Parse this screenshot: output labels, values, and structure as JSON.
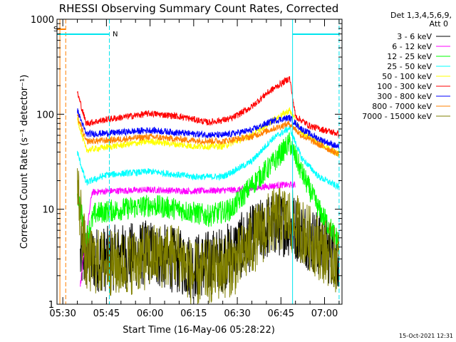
{
  "chart_data": {
    "type": "line",
    "title": "RHESSI Observing Summary Count Rates, Corrected",
    "xlabel": "Start Time (16-May-06 05:28:22)",
    "ylabel": "Corrected Count Rate (s⁻¹ detector⁻¹)",
    "yscale": "log",
    "ylim": [
      1,
      1000
    ],
    "xlim": [
      "05:28",
      "07:06"
    ],
    "x_ticks": [
      "05:30",
      "05:45",
      "06:00",
      "06:15",
      "06:30",
      "06:45",
      "07:00"
    ],
    "y_ticks": [
      "1",
      "10",
      "100",
      "1000"
    ],
    "timestamp": "15-Oct-2021 12:31",
    "legend": {
      "placement": "top-right",
      "header": [
        "Det 1,3,4,5,6,9,",
        "Att 0"
      ]
    },
    "annotations": {
      "saa_label": "S",
      "night_label": "N",
      "saa_color": "#ff8000",
      "night_color": "#00e5ee",
      "saa_line_times": [
        "05:29",
        "05:31"
      ],
      "night_line_times": [
        "05:28",
        "05:46",
        "06:49",
        "07:05"
      ],
      "saa_bar": [
        "05:28",
        "05:31"
      ],
      "night_bars": [
        [
          "05:28",
          "05:46"
        ],
        [
          "06:49",
          "07:05"
        ]
      ]
    },
    "series": [
      {
        "name": "3 - 6 keV",
        "color": "#000000",
        "start": "05:36",
        "x": [
          "05:36",
          "05:45",
          "06:00",
          "06:15",
          "06:25",
          "06:35",
          "06:42",
          "06:48",
          "06:55",
          "07:05"
        ],
        "y": [
          3,
          3,
          3.5,
          2.5,
          3,
          5,
          7,
          7,
          5,
          3
        ]
      },
      {
        "name": "6 - 12 keV",
        "color": "#ff00ff",
        "start": "05:36",
        "x": [
          "05:36",
          "05:40",
          "05:45",
          "06:00",
          "06:15",
          "06:30",
          "06:38",
          "06:45",
          "06:50"
        ],
        "y": [
          1.6,
          15,
          15.5,
          16,
          15.5,
          16,
          17,
          18,
          18
        ]
      },
      {
        "name": "12 - 25 keV",
        "color": "#00ff00",
        "start": "05:35",
        "x": [
          "05:35",
          "05:38",
          "05:41",
          "05:45",
          "06:00",
          "06:10",
          "06:20",
          "06:28",
          "06:35",
          "06:42",
          "06:48",
          "06:52",
          "06:58",
          "07:05"
        ],
        "y": [
          15,
          5,
          9,
          9.5,
          11,
          10,
          8.5,
          10,
          18,
          30,
          50,
          25,
          10,
          4.5
        ]
      },
      {
        "name": "25 - 50 keV",
        "color": "#00ffff",
        "start": "05:35",
        "x": [
          "05:35",
          "05:38",
          "05:45",
          "06:00",
          "06:15",
          "06:25",
          "06:35",
          "06:42",
          "06:48",
          "06:52",
          "06:58",
          "07:05"
        ],
        "y": [
          40,
          19,
          23,
          25,
          22,
          22,
          32,
          55,
          72,
          35,
          22,
          17
        ]
      },
      {
        "name": "50 - 100 keV",
        "color": "#ffff00",
        "start": "05:35",
        "x": [
          "05:35",
          "05:38",
          "05:45",
          "06:00",
          "06:15",
          "06:25",
          "06:35",
          "06:42",
          "06:48",
          "06:52",
          "06:58",
          "07:05"
        ],
        "y": [
          90,
          42,
          45,
          52,
          46,
          46,
          60,
          85,
          110,
          65,
          50,
          38
        ]
      },
      {
        "name": "100 - 300 keV",
        "color": "#ff0000",
        "start": "05:35",
        "x": [
          "05:35",
          "05:38",
          "05:45",
          "06:00",
          "06:10",
          "06:20",
          "06:28",
          "06:35",
          "06:40",
          "06:44",
          "06:48",
          "06:50",
          "06:55",
          "07:00",
          "07:05"
        ],
        "y": [
          170,
          80,
          88,
          102,
          95,
          82,
          90,
          120,
          165,
          200,
          240,
          95,
          75,
          68,
          62
        ]
      },
      {
        "name": "300 - 800 keV",
        "color": "#0000ff",
        "start": "05:35",
        "x": [
          "05:35",
          "05:38",
          "05:45",
          "06:00",
          "06:15",
          "06:25",
          "06:35",
          "06:42",
          "06:48",
          "06:52",
          "06:58",
          "07:05"
        ],
        "y": [
          110,
          62,
          63,
          68,
          62,
          60,
          68,
          85,
          92,
          70,
          55,
          45
        ]
      },
      {
        "name": "800 - 7000 keV",
        "color": "#ff8000",
        "start": "05:35",
        "x": [
          "05:35",
          "05:38",
          "05:45",
          "06:00",
          "06:15",
          "06:25",
          "06:35",
          "06:42",
          "06:48",
          "06:52",
          "06:58",
          "07:05"
        ],
        "y": [
          95,
          52,
          53,
          58,
          53,
          52,
          58,
          70,
          80,
          60,
          48,
          38
        ]
      },
      {
        "name": "7000 - 15000 keV",
        "color": "#808000",
        "start": "05:35",
        "x": [
          "05:35",
          "05:38",
          "05:42",
          "05:50",
          "06:00",
          "06:10",
          "06:15",
          "06:20",
          "06:30",
          "06:35",
          "06:42",
          "06:47",
          "06:52",
          "06:58",
          "07:05"
        ],
        "y": [
          17,
          2.8,
          2.8,
          2.6,
          3.2,
          3.3,
          2.0,
          2.2,
          2.8,
          4.5,
          7.5,
          8,
          6,
          4,
          2.8
        ]
      }
    ]
  }
}
